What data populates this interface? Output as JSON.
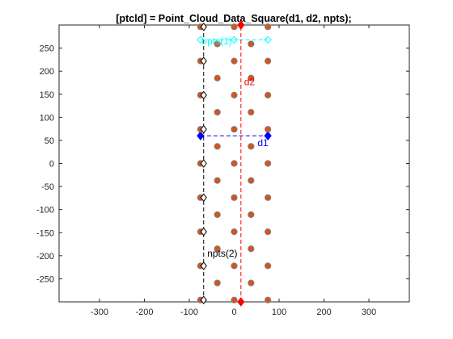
{
  "chart_data": {
    "type": "scatter",
    "title": "[ptcld] = Point_Cloud_Data_Square(d1, d2, npts);",
    "xlabel": "",
    "ylabel": "",
    "xlim": [
      -390,
      390
    ],
    "ylim": [
      -300,
      300
    ],
    "xticks": [
      -300,
      -200,
      -100,
      0,
      100,
      200,
      300
    ],
    "yticks": [
      -250,
      -200,
      -150,
      -100,
      -50,
      0,
      50,
      100,
      150,
      200,
      250
    ],
    "grid": false,
    "series": [
      {
        "marker": "circle",
        "color": "#d95319",
        "edge_color": "#7f7f7f",
        "columns": [
          {
            "x": -75,
            "y": [
              -296,
              -222,
              -148,
              -74,
              0,
              74,
              148,
              222,
              296
            ]
          },
          {
            "x": -37.5,
            "y": [
              -259,
              -185,
              -111,
              -37,
              37,
              111,
              185,
              259
            ]
          },
          {
            "x": 0,
            "y": [
              -296,
              -222,
              -148,
              -74,
              0,
              74,
              148,
              222,
              296
            ]
          },
          {
            "x": 37.5,
            "y": [
              -259,
              -185,
              -111,
              -37,
              37,
              111,
              185,
              259
            ]
          },
          {
            "x": 75,
            "y": [
              -296,
              -222,
              -148,
              -74,
              0,
              74,
              148,
              222,
              296
            ]
          }
        ]
      },
      {
        "marker": "diamond",
        "color": "#000000",
        "x": -68,
        "y": [
          -296,
          -222,
          -148,
          -74,
          0,
          74,
          148,
          222,
          296
        ]
      }
    ],
    "annotations": [
      {
        "text": "npts(1)",
        "color": "#00ffff",
        "line_y": 268,
        "x_from": -75,
        "x_to": 75,
        "label_x": -72,
        "label_y": 258
      },
      {
        "text": "d2",
        "color": "#ff0000",
        "line_x": 15,
        "y_from": -300,
        "y_to": 300,
        "label_x": 22,
        "label_y": 170
      },
      {
        "text": "d1",
        "color": "#0000ff",
        "line_y": 60,
        "x_from": -75,
        "x_to": 75,
        "label_x": 52,
        "label_y": 38
      },
      {
        "text": "npts(2)",
        "color": "#000000",
        "line_x": -68,
        "y_from": -300,
        "y_to": 300,
        "label_x": -60,
        "label_y": -202
      }
    ]
  }
}
